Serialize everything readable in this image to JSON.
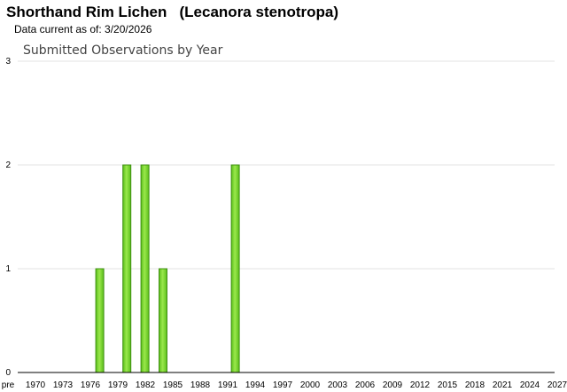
{
  "species": {
    "common_name": "Shorthand Rim Lichen",
    "scientific_name": "(Lecanora stenotropa)"
  },
  "data_current": "Data current as of: 3/20/2026",
  "chart_data": {
    "type": "bar",
    "title": "Submitted Observations by Year",
    "xlabel": "",
    "ylabel": "",
    "ylim": [
      0,
      3
    ],
    "yticks": [
      0,
      1,
      2,
      3
    ],
    "grid": true,
    "x_tick_labels": [
      "pre",
      "1970",
      "1973",
      "1976",
      "1979",
      "1982",
      "1985",
      "1988",
      "1991",
      "1994",
      "1997",
      "2000",
      "2003",
      "2006",
      "2009",
      "2012",
      "2015",
      "2018",
      "2021",
      "2024",
      "2027"
    ],
    "categories": [
      "1978",
      "1981",
      "1983",
      "1985",
      "1993"
    ],
    "values": [
      1,
      2,
      2,
      1,
      2
    ],
    "bar_color": "#7ddc2e",
    "bar_edge_color": "#3f8f12"
  }
}
